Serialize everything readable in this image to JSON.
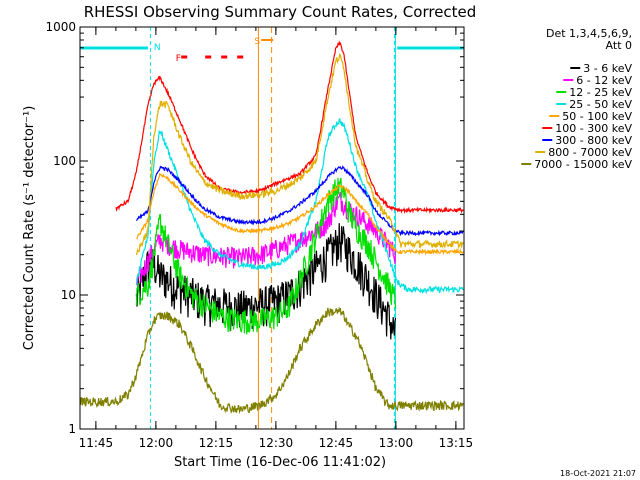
{
  "chart_data": {
    "type": "line",
    "title": "RHESSI Observing Summary Count Rates, Corrected",
    "xlabel": "Start Time (16-Dec-06 11:41:02)",
    "ylabel": "Corrected Count Rate (s⁻¹ detector⁻¹)",
    "y_scale": "log",
    "ylim": [
      1,
      1000
    ],
    "xlim_minutes": [
      0,
      96
    ],
    "x_tick_labels": [
      "11:45",
      "12:00",
      "12:15",
      "12:30",
      "12:45",
      "13:00",
      "13:15"
    ],
    "x_tick_minutes": [
      3.97,
      18.97,
      33.97,
      48.97,
      63.97,
      78.97,
      93.97
    ],
    "y_tick_labels": [
      "1",
      "10",
      "100",
      "1000"
    ],
    "y_tick_values": [
      1,
      10,
      100,
      1000
    ],
    "legend_header": [
      "Det 1,3,4,5,6,9,",
      "Att 0"
    ],
    "legend_position": "right",
    "footer_timestamp": "18-Oct-2021 21:07",
    "annotations": [
      {
        "text": "N",
        "x_minutes": 19.3,
        "color": "#00e0e0"
      },
      {
        "text": "F",
        "x_minutes": 24.6,
        "color": "#ff0000"
      },
      {
        "text": "S",
        "x_minutes": 44.3,
        "color": "#ff8c00"
      }
    ],
    "markers": {
      "night_bars_minutes": [
        [
          0,
          17
        ],
        [
          79.3,
          96
        ]
      ],
      "night_lines_minutes": [
        17.6,
        78.6
      ],
      "flare_dashes_minutes": [
        [
          25.3,
          26.8
        ],
        [
          31.3,
          32.8
        ],
        [
          35.3,
          36.8
        ],
        [
          39.3,
          40.8
        ]
      ],
      "saa_bar_minutes": [
        [
          45.3,
          48.3
        ]
      ],
      "saa_lines_minutes": [
        44.6,
        47.9
      ],
      "data_end_lines_minutes": [
        78.6
      ]
    },
    "time_knots_minutes": [
      0,
      9,
      12,
      14,
      17,
      18.5,
      20,
      22,
      25,
      28,
      31,
      35,
      40,
      45,
      49,
      52,
      55,
      59,
      62,
      64,
      65,
      66,
      67,
      69,
      72,
      74,
      77,
      79,
      80,
      82,
      85,
      90,
      96
    ],
    "series": [
      {
        "name": "3 - 6 keV",
        "color": "#000000",
        "values": [
          null,
          null,
          null,
          9,
          17,
          17,
          14,
          13,
          11,
          10,
          9,
          8.5,
          8,
          8.5,
          9,
          10,
          12,
          16,
          20,
          24,
          26,
          24,
          22,
          18,
          13,
          10,
          7,
          5,
          null,
          null,
          null,
          null,
          null
        ]
      },
      {
        "name": "6 - 12 keV",
        "color": "#ff00ff",
        "values": [
          null,
          null,
          null,
          12,
          18,
          22,
          26,
          24,
          22,
          21,
          20,
          19.5,
          19,
          20,
          22,
          24,
          26,
          30,
          35,
          48,
          52,
          48,
          44,
          40,
          34,
          30,
          24,
          20,
          null,
          null,
          null,
          null,
          null
        ]
      },
      {
        "name": "12 - 25 keV",
        "color": "#00e000",
        "values": [
          null,
          null,
          null,
          10,
          12,
          20,
          36,
          24,
          14,
          10,
          8.5,
          7,
          6.5,
          6.5,
          7,
          8,
          13,
          28,
          50,
          62,
          64,
          58,
          44,
          32,
          24,
          18,
          12,
          9,
          null,
          null,
          null,
          null,
          null
        ]
      },
      {
        "name": "25 - 50 keV",
        "color": "#00e0e0",
        "values": [
          null,
          null,
          null,
          12,
          28,
          100,
          170,
          120,
          70,
          40,
          26,
          20,
          17,
          16,
          17,
          19,
          24,
          50,
          150,
          190,
          200,
          180,
          150,
          90,
          55,
          35,
          20,
          13,
          12,
          11,
          11,
          11,
          11
        ]
      },
      {
        "name": "50 - 100 keV",
        "color": "#ffa500",
        "values": [
          null,
          null,
          null,
          26,
          36,
          60,
          80,
          74,
          60,
          48,
          40,
          34,
          30,
          30,
          32,
          34,
          38,
          46,
          56,
          62,
          65,
          63,
          60,
          50,
          40,
          32,
          25,
          21,
          21,
          21,
          21,
          21,
          21
        ]
      },
      {
        "name": "100 - 300 keV",
        "color": "#ff0000",
        "values": [
          null,
          44,
          50,
          80,
          260,
          380,
          420,
          320,
          200,
          120,
          80,
          62,
          58,
          60,
          68,
          74,
          80,
          110,
          350,
          700,
          760,
          620,
          380,
          150,
          80,
          58,
          46,
          44,
          43,
          43,
          43,
          43,
          43
        ]
      },
      {
        "name": "300 - 800 keV",
        "color": "#0000ff",
        "values": [
          null,
          null,
          null,
          36,
          42,
          70,
          90,
          86,
          70,
          55,
          44,
          38,
          35,
          35,
          38,
          42,
          48,
          60,
          76,
          86,
          90,
          88,
          82,
          70,
          55,
          42,
          34,
          30,
          29,
          29,
          29,
          29,
          29
        ]
      },
      {
        "name": "800 - 7000 keV",
        "color": "#e0b000",
        "values": [
          null,
          null,
          null,
          20,
          30,
          160,
          270,
          260,
          150,
          95,
          70,
          60,
          55,
          56,
          60,
          66,
          74,
          100,
          300,
          560,
          600,
          500,
          300,
          130,
          70,
          50,
          38,
          30,
          24,
          24,
          24,
          24,
          24
        ]
      },
      {
        "name": "7000 - 15000 keV",
        "color": "#808000",
        "values": [
          1.6,
          1.6,
          1.8,
          2.5,
          5,
          6.5,
          7,
          7,
          6,
          4,
          2.5,
          1.5,
          1.4,
          1.5,
          1.8,
          2.5,
          4,
          6,
          7.5,
          7.5,
          7.5,
          7,
          6,
          5,
          3,
          2,
          1.5,
          1.5,
          1.5,
          1.5,
          1.5,
          1.5,
          1.5
        ]
      }
    ]
  }
}
